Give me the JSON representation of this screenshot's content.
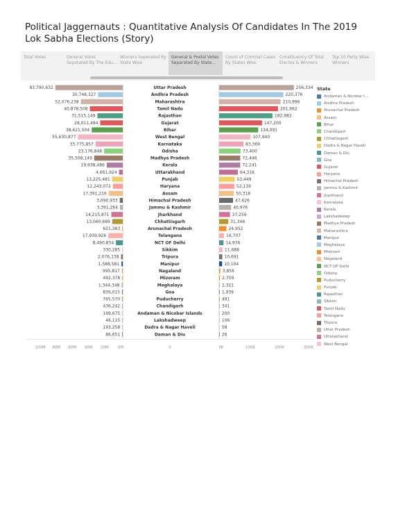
{
  "title": "Political Jaggernauts : Quantitative Analysis Of Candidates In The 2019 Lok Sabha Elections (Story)",
  "tabs": [
    {
      "label": "Total Votes",
      "active": false
    },
    {
      "label": "General Votes Sepatated By The Edu...",
      "active": false
    },
    {
      "label": "Winners Seperated By State Wise",
      "active": false
    },
    {
      "label": "General & Postal Votes Separated By State...",
      "active": true
    },
    {
      "label": "Count of Criminal Cases By States Wise",
      "active": false
    },
    {
      "label": "Constituency Of Total Electos & Winners",
      "active": false
    },
    {
      "label": "Top 10 Party Wise Winners",
      "active": false
    }
  ],
  "legend_title": "State",
  "chart_data": {
    "type": "bar",
    "states": [
      "Uttar Pradesh",
      "Andhra Pradesh",
      "Maharashtra",
      "Tamil Nadu",
      "Rajasthan",
      "Gujarat",
      "Bihar",
      "West Bengal",
      "Karnataka",
      "Odisha",
      "Madhya Pradesh",
      "Kerala",
      "Uttarakhand",
      "Punjab",
      "Haryana",
      "Assam",
      "Himachal Pradesh",
      "Jammu & Kashmir",
      "Jharkhand",
      "Chhattisgarh",
      "Arunachal Pradesh",
      "Telangana",
      "NCT OF Delhi",
      "Sikkim",
      "Tripura",
      "Manipur",
      "Nagaland",
      "Mizoram",
      "Meghalaya",
      "Goa",
      "Puducherry",
      "Chandigarh",
      "Andaman & Nicobar Islands",
      "Lakshadweep",
      "Dadra & Nagar Haveli",
      "Daman & Diu"
    ],
    "general_votes": [
      83790632,
      30748327,
      52076238,
      40878508,
      31515149,
      28011484,
      38621504,
      55630877,
      33775857,
      23176848,
      35508149,
      19938486,
      4661924,
      13225481,
      12243072,
      17391216,
      3690933,
      3391264,
      14215871,
      13060689,
      621383,
      17939926,
      8490834,
      330285,
      2076138,
      1588581,
      995817,
      492378,
      1344348,
      839015,
      765570,
      436242,
      199675,
      46115,
      193258,
      86651
    ],
    "general_votes_labels": [
      "83,790,632",
      "30,748,327",
      "52,076,238",
      "40,878,508",
      "31,515,149",
      "28,011,484",
      "38,621,504",
      "55,630,877",
      "33,775,857",
      "23,176,848",
      "35,508,149",
      "19,938,486",
      "4,661,924",
      "13,225,481",
      "12,243,072",
      "17,391,216",
      "3,690,933",
      "3,391,264",
      "14,215,871",
      "13,060,689",
      "621,383",
      "17,939,926",
      "8,490,834",
      "330,285",
      "2,076,138",
      "1,588,581",
      "995,817",
      "492,378",
      "1,344,348",
      "839,015",
      "765,570",
      "436,242",
      "199,675",
      "46,115",
      "193,258",
      "86,651"
    ],
    "postal_votes": [
      256334,
      220376,
      210996,
      201962,
      182982,
      147200,
      134091,
      107940,
      83369,
      73400,
      72446,
      72241,
      64316,
      53449,
      52139,
      50318,
      47626,
      40976,
      37256,
      31346,
      24952,
      16707,
      14976,
      11688,
      10691,
      10104,
      3856,
      2759,
      2321,
      1939,
      491,
      341,
      200,
      106,
      58,
      26
    ],
    "postal_votes_labels": [
      "256,334",
      "220,376",
      "210,996",
      "201,962",
      "182,982",
      "147,200",
      "134,091",
      "107,940",
      "83,369",
      "73,400",
      "72,446",
      "72,241",
      "64,316",
      "53,449",
      "52,139",
      "50,318",
      "47,626",
      "40,976",
      "37,256",
      "31,346",
      "24,952",
      "16,707",
      "14,976",
      "11,688",
      "10,691",
      "10,104",
      "3,856",
      "2,759",
      "2,321",
      "1,939",
      "491",
      "341",
      "200",
      "106",
      "58",
      "26"
    ],
    "colors": [
      "#b9a19c",
      "#a3c8e2",
      "#d3b3a9",
      "#e15759",
      "#4e9f8a",
      "#e15759",
      "#59a14f",
      "#f4b6c2",
      "#f1a2b9",
      "#8cd17d",
      "#9c7a68",
      "#b07aa1",
      "#bf6e96",
      "#f1ce63",
      "#ff9d9a",
      "#f3c08a",
      "#6b6b6b",
      "#bab0ac",
      "#d37295",
      "#b6992d",
      "#f28e2b",
      "#fbb0a9",
      "#499894",
      "#fcb5c6",
      "#79706e",
      "#17508f",
      "#f28e2b",
      "#f28e2b",
      "#bab0ac",
      "#79706e",
      "#b6992d",
      "#9e9e9e",
      "#a0cbe8",
      "#c2a5cf",
      "#d7b5a6",
      "#4e79a7"
    ],
    "left_axis_ticks": [
      "100M",
      "80M",
      "60M",
      "40M",
      "20M",
      "0M"
    ],
    "middle_axis_tick": "0",
    "right_axis_ticks": [
      "0K",
      "100K",
      "200K",
      "300K"
    ],
    "left_xlim": [
      0,
      100000000
    ],
    "right_xlim": [
      0,
      300000
    ]
  },
  "legend": [
    {
      "label": "Andaman & Nicobar I...",
      "color": "#4e79a7"
    },
    {
      "label": "Andhra Pradesh",
      "color": "#a0cbe8"
    },
    {
      "label": "Arunachal Pradesh",
      "color": "#f28e2b"
    },
    {
      "label": "Assam",
      "color": "#ffbe7d"
    },
    {
      "label": "Bihar",
      "color": "#59a14f"
    },
    {
      "label": "Chandigarh",
      "color": "#8cd17d"
    },
    {
      "label": "Chhattisgarh",
      "color": "#b6992d"
    },
    {
      "label": "Dadra & Nagar Haveli",
      "color": "#f1ce63"
    },
    {
      "label": "Daman & Diu",
      "color": "#499894"
    },
    {
      "label": "Goa",
      "color": "#86bcb6"
    },
    {
      "label": "Gujarat",
      "color": "#e15759"
    },
    {
      "label": "Haryana",
      "color": "#ff9d9a"
    },
    {
      "label": "Himachal Pradesh",
      "color": "#79706e"
    },
    {
      "label": "Jammu & Kashmir",
      "color": "#bab0ac"
    },
    {
      "label": "Jharkhand",
      "color": "#d37295"
    },
    {
      "label": "Karnataka",
      "color": "#fabfd2"
    },
    {
      "label": "Kerala",
      "color": "#b07aa1"
    },
    {
      "label": "Lakshadweep",
      "color": "#d4a6c8"
    },
    {
      "label": "Madhya Pradesh",
      "color": "#9d7660"
    },
    {
      "label": "Maharashtra",
      "color": "#d7b5a6"
    },
    {
      "label": "Manipur",
      "color": "#4e79a7"
    },
    {
      "label": "Meghalaya",
      "color": "#a0cbe8"
    },
    {
      "label": "Mizoram",
      "color": "#f28e2b"
    },
    {
      "label": "Nagaland",
      "color": "#ffbe7d"
    },
    {
      "label": "NCT OF Delhi",
      "color": "#59a14f"
    },
    {
      "label": "Odisha",
      "color": "#8cd17d"
    },
    {
      "label": "Puducherry",
      "color": "#b6992d"
    },
    {
      "label": "Punjab",
      "color": "#f1ce63"
    },
    {
      "label": "Rajasthan",
      "color": "#499894"
    },
    {
      "label": "Sikkim",
      "color": "#86bcb6"
    },
    {
      "label": "Tamil Nadu",
      "color": "#e15759"
    },
    {
      "label": "Telangana",
      "color": "#ff9d9a"
    },
    {
      "label": "Tripura",
      "color": "#79706e"
    },
    {
      "label": "Uttar Pradesh",
      "color": "#bab0ac"
    },
    {
      "label": "Uttarakhand",
      "color": "#d37295"
    },
    {
      "label": "West Bengal",
      "color": "#fabfd2"
    }
  ]
}
